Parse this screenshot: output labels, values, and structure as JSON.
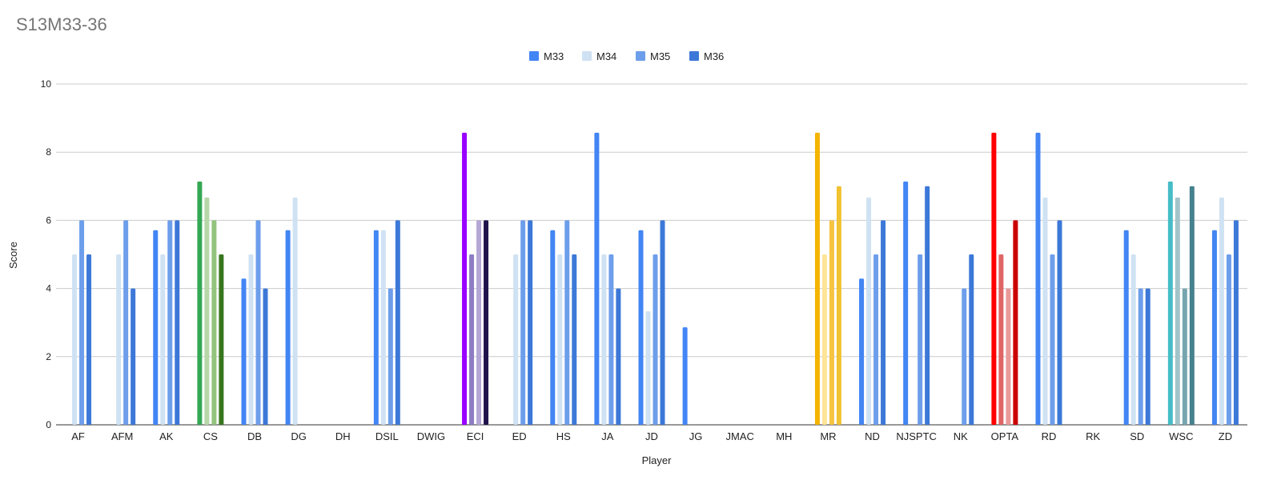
{
  "chart_data": {
    "type": "bar",
    "title": "S13M33-36",
    "xlabel": "Player",
    "ylabel": "Score",
    "ylim": [
      0,
      10
    ],
    "yticks": [
      0,
      2,
      4,
      6,
      8,
      10
    ],
    "grid": true,
    "legend_position": "top-center",
    "categories": [
      "AF",
      "AFM",
      "AK",
      "CS",
      "DB",
      "DG",
      "DH",
      "DSIL",
      "DWIG",
      "ECI",
      "ED",
      "HS",
      "JA",
      "JD",
      "JG",
      "JMAC",
      "MH",
      "MR",
      "ND",
      "NJSPTC",
      "NK",
      "OPTA",
      "RD",
      "RK",
      "SD",
      "WSC",
      "ZD"
    ],
    "series": [
      {
        "name": "M33",
        "color": "#4285f4",
        "values": [
          0,
          0,
          5.71,
          7.14,
          4.29,
          5.71,
          0,
          5.71,
          0,
          8.57,
          0,
          5.71,
          8.57,
          5.71,
          2.86,
          0,
          0,
          8.57,
          4.29,
          7.14,
          0,
          8.57,
          8.57,
          0,
          5.71,
          7.14,
          5.71
        ]
      },
      {
        "name": "M34",
        "color": "#cfe2f3",
        "values": [
          5,
          5,
          5,
          6.67,
          5,
          6.67,
          0,
          5.71,
          0,
          5,
          5,
          5,
          5,
          3.33,
          0,
          0,
          0,
          5,
          6.67,
          0,
          0,
          5,
          6.67,
          0,
          5,
          6.67,
          6.67
        ]
      },
      {
        "name": "M35",
        "color": "#6d9eeb",
        "values": [
          6,
          6,
          6,
          6,
          6,
          0,
          0,
          4,
          0,
          6,
          6,
          6,
          5,
          5,
          0,
          0,
          0,
          6,
          5,
          5,
          4,
          4,
          5,
          0,
          4,
          4,
          5
        ]
      },
      {
        "name": "M36",
        "color": "#3c78d8",
        "values": [
          5,
          4,
          6,
          5,
          4,
          0,
          0,
          6,
          0,
          6,
          6,
          5,
          4,
          6,
          0,
          0,
          0,
          7,
          6,
          7,
          5,
          6,
          6,
          0,
          4,
          7,
          6
        ]
      }
    ],
    "category_colors": {
      "CS": [
        "#34a853",
        "#b6d7a8",
        "#93c47d",
        "#38761d"
      ],
      "ECI": [
        "#9900ff",
        "#8e7cc3",
        "#b4a7d6",
        "#20124d"
      ],
      "MR": [
        "#f4b400",
        "#ffe599",
        "#f6c342",
        "#f1c232"
      ],
      "OPTA": [
        "#ff0000",
        "#e06666",
        "#ea9999",
        "#cc0000"
      ],
      "WSC": [
        "#46bdc6",
        "#a2c4c9",
        "#76a5af",
        "#45818e"
      ]
    }
  }
}
